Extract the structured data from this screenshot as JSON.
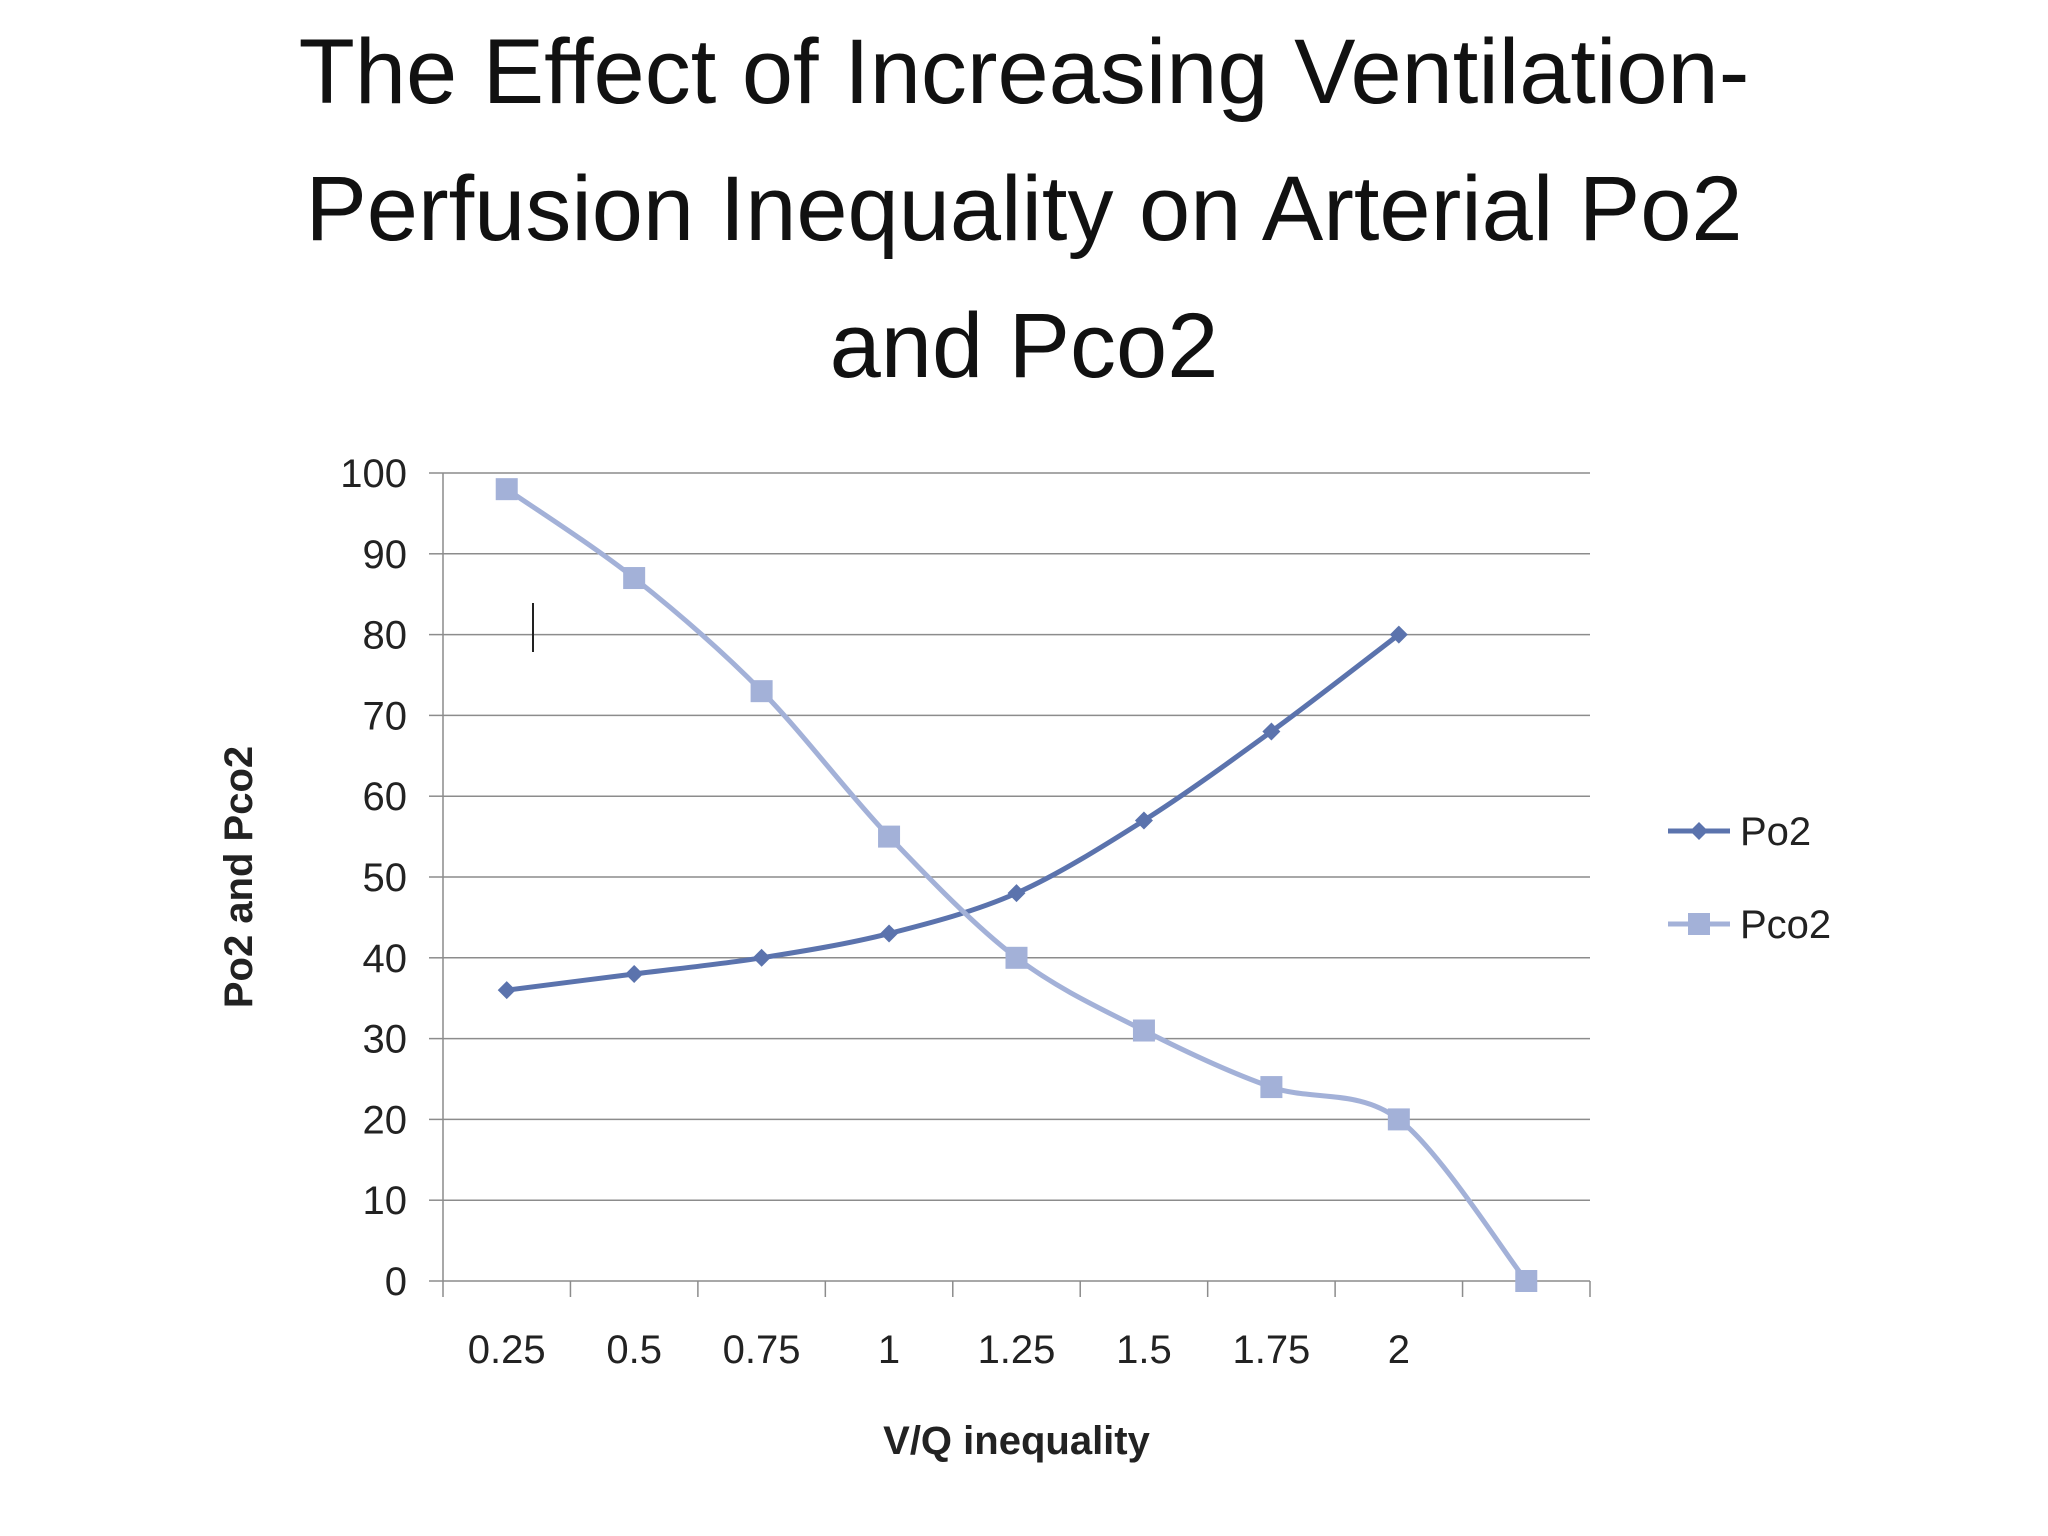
{
  "slide": {
    "title_lines": [
      "The Effect of Increasing Ventilation-",
      "Perfusion Inequality on Arterial Po2",
      "and Pco2"
    ]
  },
  "chart_data": {
    "type": "line",
    "title": "",
    "xlabel": "V/Q inequality",
    "ylabel": "Po2 and Pco2",
    "categories": [
      "0.25",
      "0.5",
      "0.75",
      "1",
      "1.25",
      "1.5",
      "1.75",
      "2",
      ""
    ],
    "ylim": [
      0,
      100
    ],
    "yticks": [
      0,
      10,
      20,
      30,
      40,
      50,
      60,
      70,
      80,
      90,
      100
    ],
    "grid": true,
    "legend_position": "right",
    "series": [
      {
        "name": "Po2",
        "color": "#5b73ad",
        "marker": "diamond",
        "values": [
          36,
          38,
          40,
          43,
          48,
          57,
          68,
          80,
          null
        ]
      },
      {
        "name": "Pco2",
        "color": "#a3b1d8",
        "marker": "square",
        "values": [
          98,
          87,
          73,
          55,
          40,
          31,
          24,
          20,
          0
        ]
      }
    ]
  }
}
